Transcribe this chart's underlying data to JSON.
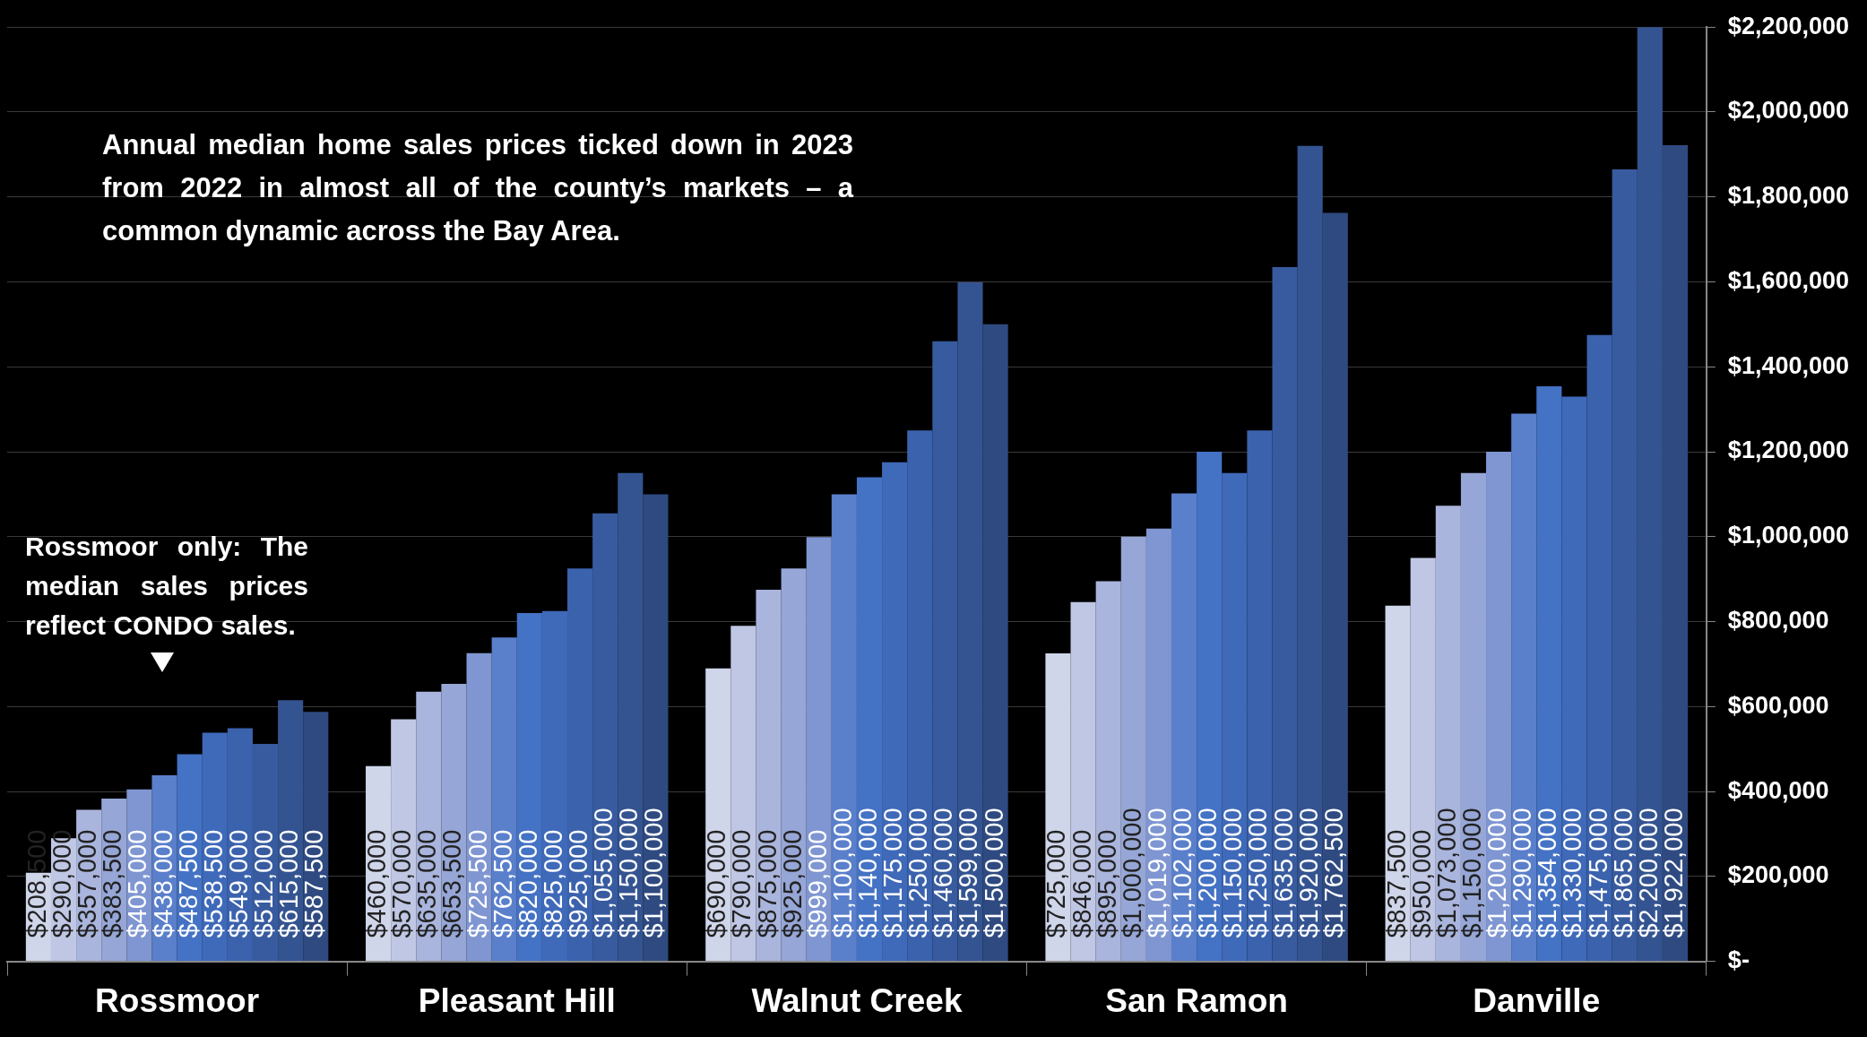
{
  "chart_data": {
    "type": "bar",
    "annotations": [
      "Annual median home sales prices ticked down in 2023 from 2022 in almost all of the county’s markets – a common dynamic across the Bay Area.",
      "Rossmoor only: The median sales prices reflect CONDO sales."
    ],
    "categories": [
      "Rossmoor",
      "Pleasant Hill",
      "Walnut Creek",
      "San Ramon",
      "Danville"
    ],
    "series": [
      {
        "color": "#d0d6ea",
        "values": [
          208500,
          460000,
          690000,
          725000,
          837500
        ],
        "value_labels": [
          "$208,500",
          "$460,000",
          "$690,000",
          "$725,000",
          "$837,500"
        ]
      },
      {
        "color": "#bfc7e4",
        "values": [
          290000,
          570000,
          790000,
          846000,
          950000
        ],
        "value_labels": [
          "$290,000",
          "$570,000",
          "$790,000",
          "$846,000",
          "$950,000"
        ]
      },
      {
        "color": "#aab5dd",
        "values": [
          357000,
          635000,
          875000,
          895000,
          1073000
        ],
        "value_labels": [
          "$357,000",
          "$635,000",
          "$875,000",
          "$895,000",
          "$1,073,000"
        ]
      },
      {
        "color": "#96a6d6",
        "values": [
          383500,
          653500,
          925000,
          1000000,
          1150000
        ],
        "value_labels": [
          "$383,500",
          "$653,500",
          "$925,000",
          "$1,000,000",
          "$1,150,000"
        ]
      },
      {
        "color": "#7f96d2",
        "values": [
          405000,
          725500,
          999000,
          1019000,
          1200000
        ],
        "value_labels": [
          "$405,000",
          "$725,500",
          "$999,000",
          "$1,019,000",
          "$1,200,000"
        ]
      },
      {
        "color": "#5a7fcb",
        "values": [
          438000,
          762500,
          1100000,
          1102000,
          1290000
        ],
        "value_labels": [
          "$438,000",
          "$762,500",
          "$1,100,000",
          "$1,102,000",
          "$1,290,000"
        ]
      },
      {
        "color": "#4472c4",
        "values": [
          487500,
          820000,
          1140000,
          1200000,
          1354000
        ],
        "value_labels": [
          "$487,500",
          "$820,000",
          "$1,140,000",
          "$1,200,000",
          "$1,354,000"
        ]
      },
      {
        "color": "#3f69b9",
        "values": [
          538500,
          825000,
          1175000,
          1150000,
          1330000
        ],
        "value_labels": [
          "$538,500",
          "$825,000",
          "$1,175,000",
          "$1,150,000",
          "$1,330,000"
        ]
      },
      {
        "color": "#3b62ad",
        "values": [
          549000,
          925000,
          1250000,
          1250000,
          1475000
        ],
        "value_labels": [
          "$549,000",
          "$925,000",
          "$1,250,000",
          "$1,250,000",
          "$1,475,000"
        ]
      },
      {
        "color": "#385b9f",
        "values": [
          512000,
          1055000,
          1460000,
          1635000,
          1865000
        ],
        "value_labels": [
          "$512,000",
          "$1,055,000",
          "$1,460,000",
          "$1,635,000",
          "$1,865,000"
        ]
      },
      {
        "color": "#345491",
        "values": [
          615000,
          1150000,
          1599000,
          1920000,
          2200000
        ],
        "value_labels": [
          "$615,000",
          "$1,150,000",
          "$1,599,000",
          "$1,920,000",
          "$2,200,000"
        ]
      },
      {
        "color": "#2f4a80",
        "values": [
          587500,
          1100000,
          1500000,
          1762500,
          1922000
        ],
        "value_labels": [
          "$587,500",
          "$1,100,000",
          "$1,500,000",
          "$1,762,500",
          "$1,922,000"
        ]
      }
    ],
    "ylim": [
      0,
      2200000
    ],
    "yticks": [
      {
        "value": 0,
        "label": "$-"
      },
      {
        "value": 200000,
        "label": "$200,000"
      },
      {
        "value": 400000,
        "label": "$400,000"
      },
      {
        "value": 600000,
        "label": "$600,000"
      },
      {
        "value": 800000,
        "label": "$800,000"
      },
      {
        "value": 1000000,
        "label": "$1,000,000"
      },
      {
        "value": 1200000,
        "label": "$1,200,000"
      },
      {
        "value": 1400000,
        "label": "$1,400,000"
      },
      {
        "value": 1600000,
        "label": "$1,600,000"
      },
      {
        "value": 1800000,
        "label": "$1,800,000"
      },
      {
        "value": 2000000,
        "label": "$2,000,000"
      },
      {
        "value": 2200000,
        "label": "$2,200,000"
      }
    ],
    "grid": "y",
    "legend": false
  }
}
